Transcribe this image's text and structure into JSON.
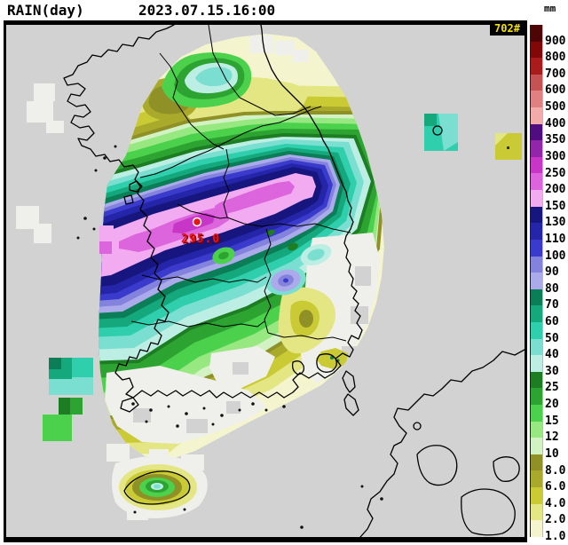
{
  "header": {
    "title": "RAIN(day)",
    "datetime": "2023.07.15.16:00",
    "unit": "mm"
  },
  "map": {
    "badge": "702#",
    "marker_value": "295.0",
    "marker_color": "#e81515",
    "sea_color": "#d2d2d2",
    "no_echo_color": "#efefec"
  },
  "legend": {
    "entries": [
      {
        "v": "900",
        "c": "#4d0505"
      },
      {
        "v": "800",
        "c": "#800808"
      },
      {
        "v": "700",
        "c": "#a81c1c"
      },
      {
        "v": "600",
        "c": "#c65353"
      },
      {
        "v": "500",
        "c": "#e08080"
      },
      {
        "v": "400",
        "c": "#f2aaaa"
      },
      {
        "v": "350",
        "c": "#4f0d80"
      },
      {
        "v": "300",
        "c": "#9127a8"
      },
      {
        "v": "250",
        "c": "#c736c7"
      },
      {
        "v": "200",
        "c": "#dc64dc"
      },
      {
        "v": "150",
        "c": "#f2aaf0"
      },
      {
        "v": "130",
        "c": "#16167e"
      },
      {
        "v": "110",
        "c": "#2525aa"
      },
      {
        "v": "100",
        "c": "#3a3acd"
      },
      {
        "v": "90",
        "c": "#8383de"
      },
      {
        "v": "80",
        "c": "#abaaeb"
      },
      {
        "v": "70",
        "c": "#0b7d57"
      },
      {
        "v": "60",
        "c": "#14a87c"
      },
      {
        "v": "50",
        "c": "#2fcfad"
      },
      {
        "v": "40",
        "c": "#7adfd0"
      },
      {
        "v": "30",
        "c": "#bceee4"
      },
      {
        "v": "25",
        "c": "#1d7d22"
      },
      {
        "v": "20",
        "c": "#2da432"
      },
      {
        "v": "15",
        "c": "#4bd14b"
      },
      {
        "v": "12",
        "c": "#97e881"
      },
      {
        "v": "10",
        "c": "#d2f2c3"
      },
      {
        "v": "8.0",
        "c": "#8f9025"
      },
      {
        "v": "6.0",
        "c": "#a9aa2c"
      },
      {
        "v": "4.0",
        "c": "#c9ca34"
      },
      {
        "v": "2.0",
        "c": "#e4e683"
      },
      {
        "v": "1.0",
        "c": "#f4f5cf"
      }
    ]
  }
}
